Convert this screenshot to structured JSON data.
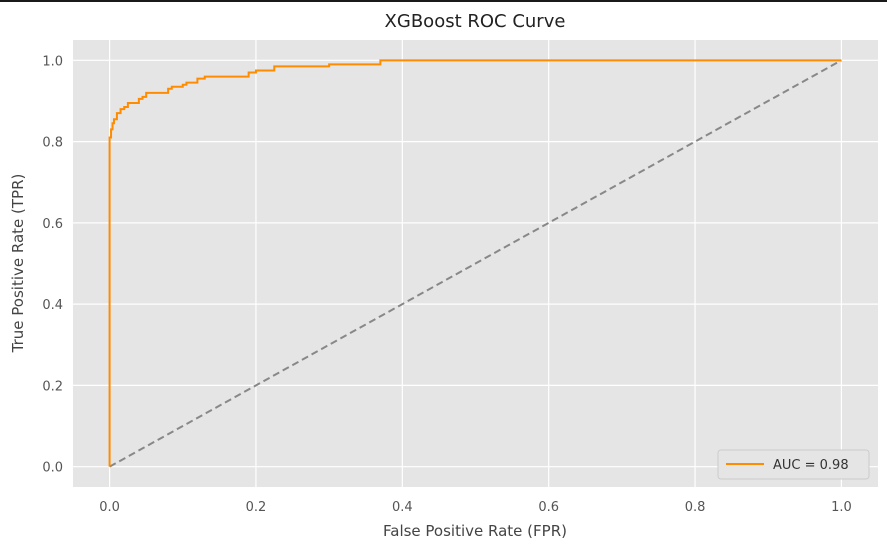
{
  "chart_data": {
    "type": "line",
    "title": "XGBoost ROC Curve",
    "xlabel": "False Positive Rate (FPR)",
    "ylabel": "True Positive Rate (TPR)",
    "xlim": [
      -0.05,
      1.05
    ],
    "ylim": [
      -0.05,
      1.05
    ],
    "xticks": [
      0.0,
      0.2,
      0.4,
      0.6,
      0.8,
      1.0
    ],
    "yticks": [
      0.0,
      0.2,
      0.4,
      0.6,
      0.8,
      1.0
    ],
    "xtick_labels": [
      "0.0",
      "0.2",
      "0.4",
      "0.6",
      "0.8",
      "1.0"
    ],
    "ytick_labels": [
      "0.0",
      "0.2",
      "0.4",
      "0.6",
      "0.8",
      "1.0"
    ],
    "grid": true,
    "background_color": "#e5e5e5",
    "legend": {
      "position": "bottom-right"
    },
    "series": [
      {
        "name": "AUC = 0.98",
        "color": "#ff8c00",
        "style": "solid",
        "x": [
          0.0,
          0.0,
          0.0,
          0.0,
          0.002,
          0.002,
          0.004,
          0.004,
          0.006,
          0.006,
          0.01,
          0.01,
          0.015,
          0.015,
          0.02,
          0.02,
          0.025,
          0.025,
          0.04,
          0.04,
          0.045,
          0.045,
          0.05,
          0.05,
          0.08,
          0.08,
          0.085,
          0.085,
          0.1,
          0.1,
          0.105,
          0.105,
          0.12,
          0.12,
          0.13,
          0.13,
          0.19,
          0.19,
          0.2,
          0.2,
          0.225,
          0.225,
          0.3,
          0.3,
          0.37,
          0.37,
          1.0
        ],
        "y": [
          0.0,
          0.5,
          0.75,
          0.81,
          0.81,
          0.83,
          0.83,
          0.845,
          0.845,
          0.855,
          0.855,
          0.87,
          0.87,
          0.88,
          0.88,
          0.885,
          0.885,
          0.895,
          0.895,
          0.905,
          0.905,
          0.91,
          0.91,
          0.92,
          0.92,
          0.93,
          0.93,
          0.935,
          0.935,
          0.94,
          0.94,
          0.945,
          0.945,
          0.955,
          0.955,
          0.96,
          0.96,
          0.97,
          0.97,
          0.975,
          0.975,
          0.985,
          0.985,
          0.99,
          0.99,
          1.0,
          1.0
        ]
      },
      {
        "color": "#888888",
        "style": "dashed",
        "x": [
          0.0,
          1.0
        ],
        "y": [
          0.0,
          1.0
        ]
      }
    ]
  }
}
